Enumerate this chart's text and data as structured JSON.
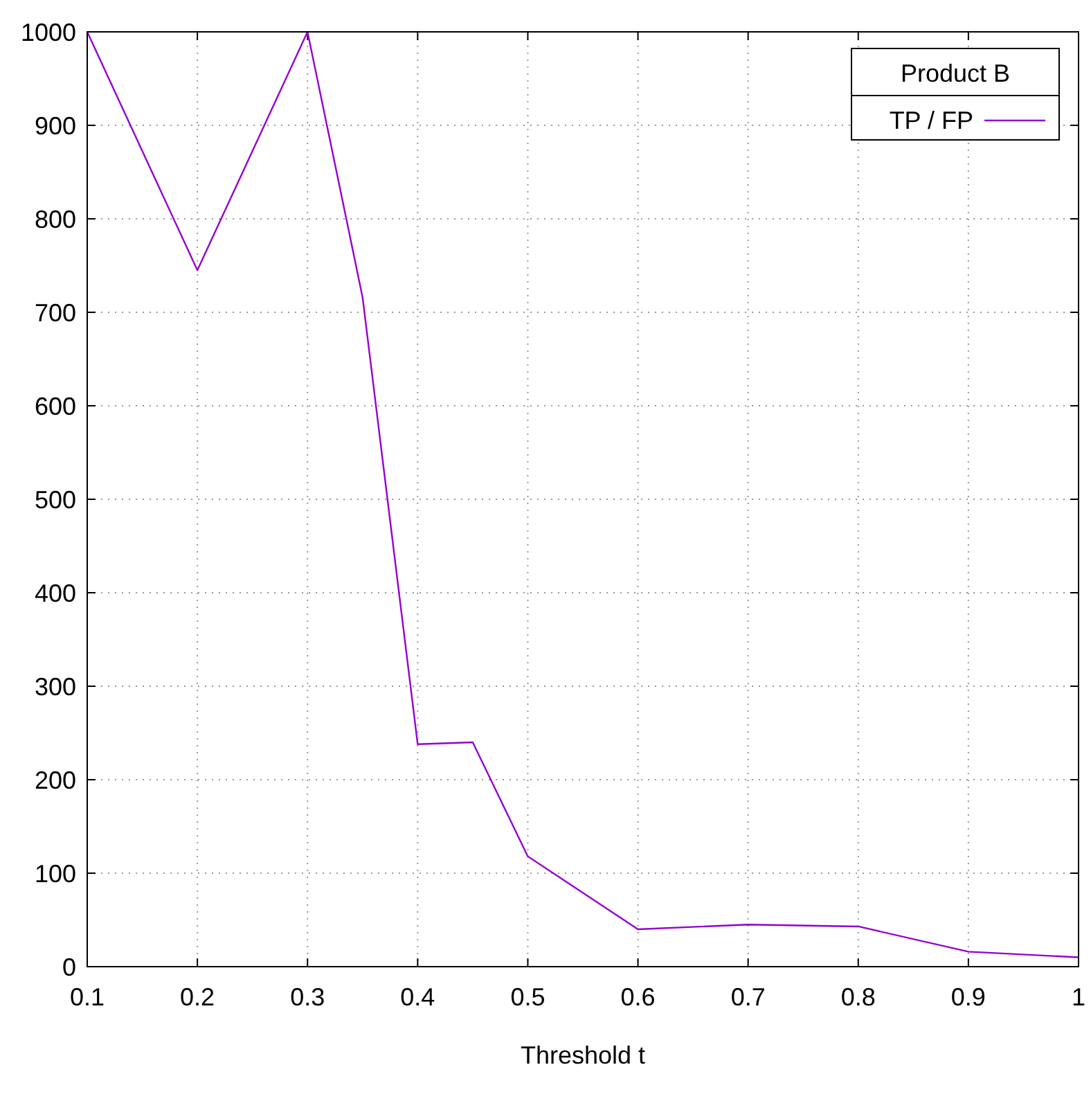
{
  "chart_data": {
    "type": "line",
    "xlabel": "Threshold t",
    "legend_title": "Product B",
    "x": [
      0.1,
      0.2,
      0.3,
      0.35,
      0.4,
      0.45,
      0.5,
      0.6,
      0.7,
      0.8,
      0.9,
      1
    ],
    "series": [
      {
        "name": "TP / FP",
        "color": "#9400d3",
        "values": [
          1000,
          745,
          1000,
          716,
          238,
          240,
          118,
          40,
          45,
          43,
          16,
          10
        ]
      }
    ],
    "xlim": [
      0.1,
      1
    ],
    "xticks": [
      0.1,
      0.2,
      0.3,
      0.4,
      0.5,
      0.6,
      0.7,
      0.8,
      0.9,
      1
    ],
    "ylim": [
      0,
      1000
    ],
    "yticks": [
      0,
      100,
      200,
      300,
      400,
      500,
      600,
      700,
      800,
      900,
      1000
    ],
    "grid": true,
    "legend": "top right",
    "marker": "none",
    "line_style": "solid"
  }
}
